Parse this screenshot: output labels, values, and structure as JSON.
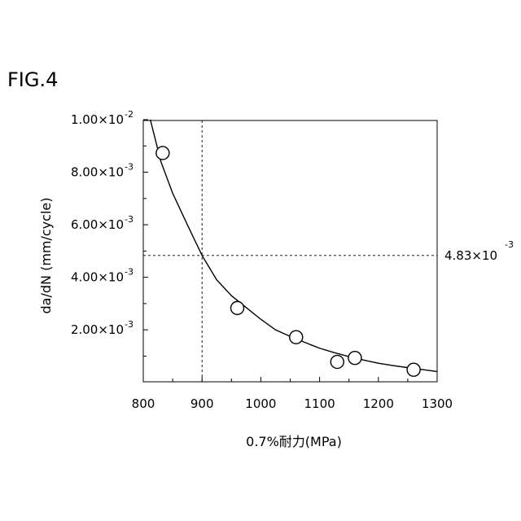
{
  "figure_label": "FIG.4",
  "chart_data": {
    "type": "scatter",
    "xlabel": "0.7%耐力(MPa)",
    "ylabel": "da/dN (mm/cycle)",
    "xlim": [
      800,
      1300
    ],
    "ylim": [
      0,
      0.01
    ],
    "x_ticks": [
      800,
      900,
      1000,
      1100,
      1200,
      1300
    ],
    "x_tick_labels": [
      "800",
      "900",
      "1000",
      "1100",
      "1200",
      "1300"
    ],
    "y_ticks": [
      {
        "value": 0.01,
        "mantissa": "1.00×10",
        "exponent": "-2"
      },
      {
        "value": 0.008,
        "mantissa": "8.00×10",
        "exponent": "-3"
      },
      {
        "value": 0.006,
        "mantissa": "6.00×10",
        "exponent": "-3"
      },
      {
        "value": 0.004,
        "mantissa": "4.00×10",
        "exponent": "-3"
      },
      {
        "value": 0.002,
        "mantissa": "2.00×10",
        "exponent": "-3"
      }
    ],
    "points": [
      {
        "x": 833,
        "y": 0.00873
      },
      {
        "x": 960,
        "y": 0.00283
      },
      {
        "x": 1060,
        "y": 0.00172
      },
      {
        "x": 1130,
        "y": 0.00078
      },
      {
        "x": 1160,
        "y": 0.00093
      },
      {
        "x": 1260,
        "y": 0.00048
      }
    ],
    "fit_curve": {
      "x": [
        812,
        830,
        850,
        875,
        900,
        925,
        950,
        975,
        1000,
        1025,
        1050,
        1075,
        1100,
        1125,
        1150,
        1175,
        1200,
        1225,
        1250,
        1275,
        1300
      ],
      "y": [
        0.01,
        0.0084,
        0.0072,
        0.006,
        0.00483,
        0.0039,
        0.0033,
        0.00285,
        0.0024,
        0.002,
        0.00175,
        0.00152,
        0.0013,
        0.00113,
        0.00098,
        0.00085,
        0.00073,
        0.00064,
        0.00056,
        0.00049,
        0.00041
      ]
    },
    "reference": {
      "x": 900,
      "y": 0.00483,
      "label_mantissa": "4.83×10",
      "label_exponent": "-3"
    },
    "grid": false,
    "legend": "none"
  }
}
